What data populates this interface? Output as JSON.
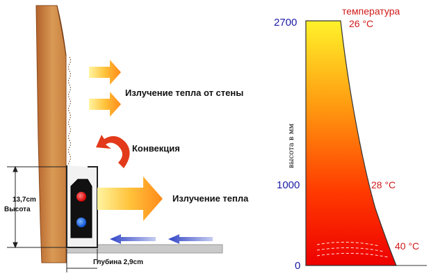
{
  "diagram": {
    "labels": {
      "wall_radiation": "Излучение тепла от стены",
      "convection": "Конвекция",
      "heat_radiation": "Излучение тепла",
      "height_value": "13,7cm",
      "height_word": "Высота",
      "depth": "Глубина 2,9cm"
    }
  },
  "chart_data": {
    "type": "area",
    "title": "температура",
    "ylabel": "высота в мм",
    "yticks": [
      2700,
      1000,
      0
    ],
    "ylim": [
      0,
      2700
    ],
    "annotations": [
      {
        "label": "26 °C",
        "height_mm": 2700
      },
      {
        "label": "28 °C",
        "height_mm": 1000
      },
      {
        "label": "40 °C",
        "height_mm": 150
      }
    ],
    "colors": {
      "top": "#fff22a",
      "bottom": "#ee0000",
      "ticks": "#1a1aa6",
      "temps": "#d11a1a"
    }
  }
}
